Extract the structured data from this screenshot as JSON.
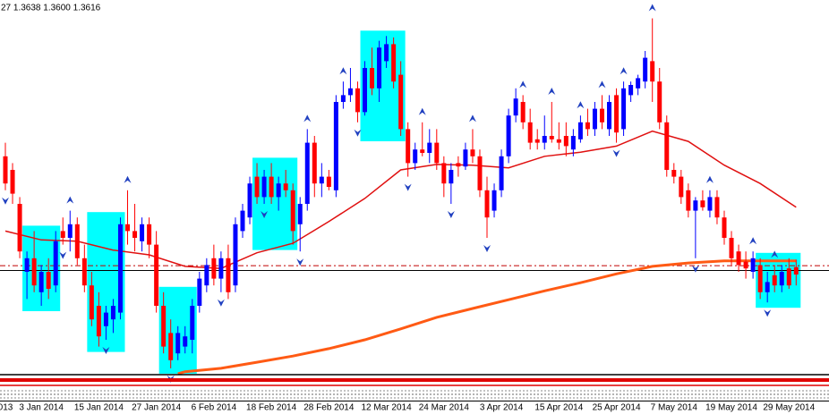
{
  "chart_data": {
    "type": "candlestick",
    "title": "27 1.3638 1.3600 1.3616",
    "up_color": "#0000ff",
    "down_color": "#ff0000",
    "highlight_color": "#00ffff",
    "fractal_color": "#2040c0",
    "ylim": [
      1.347,
      1.402
    ],
    "xlim": [
      0,
      115
    ],
    "xticks": [
      {
        "value": 0,
        "label": "013"
      },
      {
        "value": 5,
        "label": "3 Jan 2014"
      },
      {
        "value": 13,
        "label": "15 Jan 2014"
      },
      {
        "value": 21,
        "label": "27 Jan 2014"
      },
      {
        "value": 29,
        "label": "6 Feb 2014"
      },
      {
        "value": 37,
        "label": "18 Feb 2014"
      },
      {
        "value": 45,
        "label": "28 Feb 2014"
      },
      {
        "value": 53,
        "label": "12 Mar 2014"
      },
      {
        "value": 61,
        "label": "24 Mar 2014"
      },
      {
        "value": 69,
        "label": "3 Apr 2014"
      },
      {
        "value": 77,
        "label": "15 Apr 2014"
      },
      {
        "value": 85,
        "label": "25 Apr 2014"
      },
      {
        "value": 93,
        "label": "7 May 2014"
      },
      {
        "value": 101,
        "label": "19 May 2014"
      },
      {
        "value": 109,
        "label": "29 May 2014"
      }
    ],
    "open": [
      1.379,
      1.377,
      1.372,
      1.362,
      1.364,
      1.359,
      1.362,
      1.36,
      1.368,
      1.367,
      1.369,
      1.364,
      1.36,
      1.357,
      1.354,
      1.355,
      1.356,
      1.369,
      1.368,
      1.3665,
      1.369,
      1.366,
      1.357,
      1.353,
      1.35,
      1.351,
      1.352,
      1.357,
      1.36,
      1.364,
      1.361,
      1.364,
      1.36,
      1.368,
      1.37,
      1.376,
      1.373,
      1.376,
      1.373,
      1.375,
      1.374,
      1.369,
      1.372,
      1.381,
      1.375,
      1.376,
      1.374,
      1.387,
      1.388,
      1.389,
      1.3855,
      1.392,
      1.389,
      1.393,
      1.3955,
      1.391,
      1.383,
      1.378,
      1.38,
      1.3795,
      1.381,
      1.378,
      1.375,
      1.378,
      1.3775,
      1.38,
      1.379,
      1.374,
      1.371,
      1.374,
      1.379,
      1.385,
      1.387,
      1.384,
      1.3815,
      1.381,
      1.382,
      1.3815,
      1.382,
      1.38,
      1.3815,
      1.384,
      1.383,
      1.386,
      1.383,
      1.388,
      1.383,
      1.388,
      1.389,
      1.39,
      1.393,
      1.39,
      1.384,
      1.377,
      1.376,
      1.374,
      1.371,
      1.3725,
      1.371,
      1.373,
      1.37,
      1.367,
      1.365,
      1.3635,
      1.362,
      1.363,
      1.359,
      1.3615,
      1.36,
      1.3625,
      1.3627
    ],
    "high": [
      1.381,
      1.378,
      1.373,
      1.365,
      1.368,
      1.363,
      1.364,
      1.368,
      1.37,
      1.371,
      1.37,
      1.366,
      1.362,
      1.359,
      1.357,
      1.358,
      1.37,
      1.374,
      1.372,
      1.37,
      1.37,
      1.368,
      1.359,
      1.355,
      1.354,
      1.354,
      1.358,
      1.362,
      1.364,
      1.366,
      1.365,
      1.366,
      1.37,
      1.372,
      1.376,
      1.378,
      1.377,
      1.378,
      1.376,
      1.377,
      1.375,
      1.373,
      1.383,
      1.382,
      1.378,
      1.377,
      1.388,
      1.39,
      1.392,
      1.39,
      1.393,
      1.395,
      1.396,
      1.3967,
      1.3965,
      1.393,
      1.384,
      1.381,
      1.384,
      1.383,
      1.383,
      1.379,
      1.378,
      1.379,
      1.381,
      1.383,
      1.38,
      1.376,
      1.375,
      1.38,
      1.386,
      1.389,
      1.388,
      1.386,
      1.383,
      1.385,
      1.387,
      1.384,
      1.384,
      1.383,
      1.385,
      1.386,
      1.387,
      1.388,
      1.388,
      1.389,
      1.39,
      1.39,
      1.391,
      1.3945,
      1.3993,
      1.392,
      1.385,
      1.378,
      1.377,
      1.375,
      1.373,
      1.374,
      1.374,
      1.374,
      1.371,
      1.368,
      1.366,
      1.365,
      1.365,
      1.364,
      1.362,
      1.363,
      1.363,
      1.364,
      1.3638
    ],
    "low": [
      1.374,
      1.372,
      1.364,
      1.358,
      1.359,
      1.357,
      1.358,
      1.359,
      1.366,
      1.365,
      1.363,
      1.359,
      1.354,
      1.351,
      1.352,
      1.353,
      1.355,
      1.366,
      1.365,
      1.365,
      1.364,
      1.356,
      1.35,
      1.3478,
      1.349,
      1.35,
      1.35,
      1.356,
      1.359,
      1.36,
      1.359,
      1.358,
      1.359,
      1.367,
      1.369,
      1.372,
      1.372,
      1.372,
      1.371,
      1.373,
      1.366,
      1.365,
      1.371,
      1.373,
      1.373,
      1.374,
      1.373,
      1.386,
      1.387,
      1.384,
      1.385,
      1.388,
      1.387,
      1.392,
      1.389,
      1.382,
      1.376,
      1.377,
      1.379,
      1.378,
      1.377,
      1.373,
      1.372,
      1.376,
      1.377,
      1.378,
      1.373,
      1.367,
      1.37,
      1.373,
      1.378,
      1.384,
      1.383,
      1.38,
      1.38,
      1.38,
      1.381,
      1.38,
      1.379,
      1.379,
      1.381,
      1.382,
      1.382,
      1.383,
      1.382,
      1.381,
      1.382,
      1.387,
      1.388,
      1.389,
      1.387,
      1.383,
      1.376,
      1.375,
      1.372,
      1.37,
      1.364,
      1.371,
      1.37,
      1.369,
      1.366,
      1.363,
      1.362,
      1.361,
      1.361,
      1.358,
      1.3575,
      1.359,
      1.359,
      1.3595,
      1.36
    ],
    "close": [
      1.375,
      1.3735,
      1.365,
      1.364,
      1.36,
      1.362,
      1.3595,
      1.3665,
      1.367,
      1.369,
      1.364,
      1.36,
      1.355,
      1.3525,
      1.356,
      1.357,
      1.369,
      1.368,
      1.367,
      1.369,
      1.366,
      1.357,
      1.351,
      1.349,
      1.353,
      1.3525,
      1.357,
      1.361,
      1.363,
      1.361,
      1.364,
      1.359,
      1.369,
      1.371,
      1.375,
      1.373,
      1.376,
      1.373,
      1.375,
      1.374,
      1.368,
      1.372,
      1.381,
      1.375,
      1.376,
      1.3745,
      1.387,
      1.388,
      1.389,
      1.3855,
      1.392,
      1.389,
      1.395,
      1.3955,
      1.39,
      1.383,
      1.378,
      1.38,
      1.3795,
      1.381,
      1.378,
      1.375,
      1.377,
      1.3775,
      1.38,
      1.379,
      1.374,
      1.37,
      1.374,
      1.379,
      1.385,
      1.3875,
      1.384,
      1.381,
      1.381,
      1.382,
      1.3815,
      1.381,
      1.3805,
      1.382,
      1.384,
      1.383,
      1.386,
      1.384,
      1.387,
      1.3825,
      1.389,
      1.3895,
      1.3905,
      1.3935,
      1.39,
      1.384,
      1.377,
      1.376,
      1.373,
      1.371,
      1.3725,
      1.3715,
      1.373,
      1.37,
      1.367,
      1.364,
      1.363,
      1.3625,
      1.364,
      1.359,
      1.3605,
      1.36,
      1.362,
      1.36,
      1.3616
    ],
    "lines": [
      {
        "color": "#e01010",
        "width": 1.5,
        "x": [
          0,
          5,
          10,
          15,
          20,
          25,
          30,
          35,
          40,
          45,
          50,
          55,
          60,
          65,
          70,
          75,
          80,
          85,
          90,
          95,
          100,
          105,
          110
        ],
        "values": [
          1.368,
          1.3667,
          1.3665,
          1.3652,
          1.3645,
          1.3628,
          1.3625,
          1.3648,
          1.3662,
          1.3694,
          1.3728,
          1.377,
          1.3778,
          1.3777,
          1.3773,
          1.379,
          1.3796,
          1.3805,
          1.3827,
          1.3812,
          1.3777,
          1.375,
          1.3715
        ]
      },
      {
        "color": "#ff5a14",
        "width": 3,
        "x": [
          24,
          25,
          30,
          35,
          40,
          45,
          50,
          55,
          60,
          65,
          70,
          75,
          80,
          85,
          90,
          95,
          100,
          105,
          110
        ],
        "values": [
          1.347,
          1.3473,
          1.3478,
          1.3487,
          1.3496,
          1.3507,
          1.352,
          1.3536,
          1.3553,
          1.3566,
          1.3579,
          1.3592,
          1.3604,
          1.3617,
          1.3628,
          1.3633,
          1.3636,
          1.3636,
          1.3636
        ]
      }
    ],
    "levels": [
      {
        "value": 1.3629,
        "color": "#c00000",
        "dashed": true
      },
      {
        "value": 1.3622,
        "color": "#000000",
        "dashed": false
      }
    ],
    "highlights": [
      [
        3,
        7
      ],
      [
        12,
        16
      ],
      [
        22,
        26
      ],
      [
        35,
        40
      ],
      [
        50,
        55
      ],
      [
        105,
        110
      ]
    ],
    "fractals_up": [
      9,
      17,
      42,
      47,
      58,
      65,
      72,
      76,
      80,
      83,
      86,
      90,
      98,
      104,
      107
    ],
    "fractals_down": [
      0,
      8,
      14,
      23,
      30,
      36,
      41,
      49,
      56,
      62,
      67,
      85,
      96,
      106
    ]
  }
}
